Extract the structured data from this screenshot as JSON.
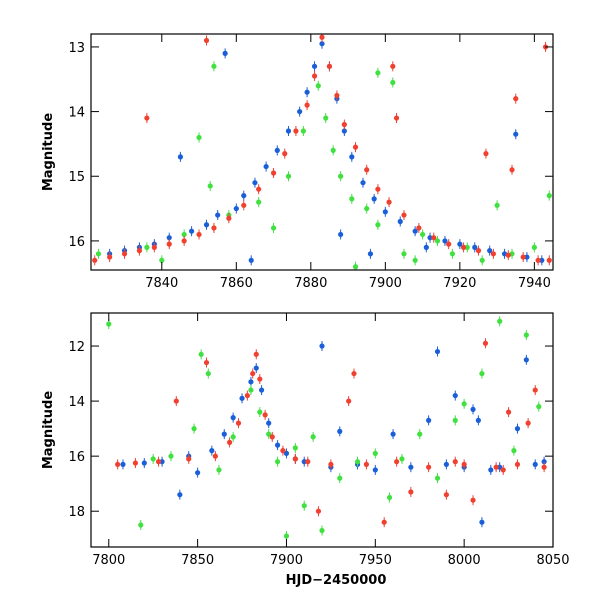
{
  "chart_data": [
    {
      "type": "scatter",
      "title": "",
      "xlabel": "",
      "ylabel": "Magnitude",
      "xlim": [
        7821,
        7945
      ],
      "ylim": [
        16.45,
        12.8
      ],
      "y_inverted": true,
      "xticks": [
        7840,
        7860,
        7880,
        7900,
        7920,
        7940
      ],
      "yticks": [
        13,
        14,
        15,
        16
      ],
      "grid": false,
      "legend": "none",
      "series": [
        {
          "color": "#1a5fd8",
          "points": [
            [
              7826,
              16.2
            ],
            [
              7830,
              16.15
            ],
            [
              7834,
              16.1
            ],
            [
              7838,
              16.05
            ],
            [
              7842,
              15.95
            ],
            [
              7845,
              14.7
            ],
            [
              7848,
              15.85
            ],
            [
              7852,
              15.75
            ],
            [
              7855,
              15.6
            ],
            [
              7857,
              13.1
            ],
            [
              7860,
              15.5
            ],
            [
              7862,
              15.3
            ],
            [
              7865,
              15.1
            ],
            [
              7868,
              14.85
            ],
            [
              7871,
              14.6
            ],
            [
              7874,
              14.3
            ],
            [
              7877,
              14.0
            ],
            [
              7879,
              13.7
            ],
            [
              7881,
              13.3
            ],
            [
              7883,
              12.95
            ],
            [
              7885,
              13.3
            ],
            [
              7887,
              13.8
            ],
            [
              7889,
              14.3
            ],
            [
              7891,
              14.7
            ],
            [
              7894,
              15.1
            ],
            [
              7897,
              15.35
            ],
            [
              7900,
              15.55
            ],
            [
              7904,
              15.7
            ],
            [
              7908,
              15.85
            ],
            [
              7912,
              15.95
            ],
            [
              7916,
              16.0
            ],
            [
              7920,
              16.05
            ],
            [
              7924,
              16.1
            ],
            [
              7928,
              16.15
            ],
            [
              7932,
              16.2
            ],
            [
              7935,
              14.35
            ],
            [
              7938,
              16.25
            ],
            [
              7942,
              16.3
            ],
            [
              7864,
              16.3
            ],
            [
              7888,
              15.9
            ],
            [
              7896,
              16.2
            ],
            [
              7911,
              16.1
            ]
          ]
        },
        {
          "color": "#41e041",
          "points": [
            [
              7823,
              16.2
            ],
            [
              7836,
              16.1
            ],
            [
              7840,
              16.3
            ],
            [
              7846,
              15.9
            ],
            [
              7850,
              14.4
            ],
            [
              7854,
              13.3
            ],
            [
              7853,
              15.15
            ],
            [
              7858,
              15.6
            ],
            [
              7866,
              15.4
            ],
            [
              7870,
              15.8
            ],
            [
              7874,
              15.0
            ],
            [
              7878,
              14.3
            ],
            [
              7882,
              13.6
            ],
            [
              7884,
              14.1
            ],
            [
              7886,
              14.6
            ],
            [
              7888,
              15.0
            ],
            [
              7891,
              15.35
            ],
            [
              7895,
              15.5
            ],
            [
              7898,
              15.75
            ],
            [
              7902,
              13.55
            ],
            [
              7898,
              13.4
            ],
            [
              7905,
              16.2
            ],
            [
              7910,
              15.9
            ],
            [
              7914,
              16.0
            ],
            [
              7918,
              16.2
            ],
            [
              7922,
              16.1
            ],
            [
              7926,
              16.3
            ],
            [
              7930,
              15.45
            ],
            [
              7934,
              16.2
            ],
            [
              7940,
              16.1
            ],
            [
              7944,
              15.3
            ],
            [
              7908,
              16.3
            ],
            [
              7892,
              16.4
            ]
          ]
        },
        {
          "color": "#f04030",
          "points": [
            [
              7822,
              16.3
            ],
            [
              7826,
              16.25
            ],
            [
              7830,
              16.2
            ],
            [
              7834,
              16.15
            ],
            [
              7836,
              14.1
            ],
            [
              7838,
              16.1
            ],
            [
              7842,
              16.05
            ],
            [
              7846,
              16.0
            ],
            [
              7850,
              15.9
            ],
            [
              7852,
              12.9
            ],
            [
              7854,
              15.8
            ],
            [
              7858,
              15.65
            ],
            [
              7862,
              15.45
            ],
            [
              7866,
              15.2
            ],
            [
              7870,
              14.95
            ],
            [
              7873,
              14.65
            ],
            [
              7876,
              14.3
            ],
            [
              7879,
              13.9
            ],
            [
              7881,
              13.45
            ],
            [
              7883,
              12.85
            ],
            [
              7885,
              13.3
            ],
            [
              7887,
              13.75
            ],
            [
              7889,
              14.2
            ],
            [
              7892,
              14.55
            ],
            [
              7895,
              14.9
            ],
            [
              7898,
              15.2
            ],
            [
              7901,
              15.4
            ],
            [
              7902,
              13.3
            ],
            [
              7903,
              14.1
            ],
            [
              7905,
              15.6
            ],
            [
              7909,
              15.8
            ],
            [
              7913,
              15.95
            ],
            [
              7917,
              16.05
            ],
            [
              7921,
              16.1
            ],
            [
              7925,
              16.15
            ],
            [
              7927,
              14.65
            ],
            [
              7929,
              16.2
            ],
            [
              7933,
              16.22
            ],
            [
              7934,
              14.9
            ],
            [
              7935,
              13.8
            ],
            [
              7937,
              16.25
            ],
            [
              7941,
              16.3
            ],
            [
              7943,
              13.0
            ],
            [
              7944,
              16.3
            ]
          ]
        }
      ]
    },
    {
      "type": "scatter",
      "title": "",
      "xlabel": "HJD−2450000",
      "ylabel": "Magnitude",
      "xlim": [
        7790,
        8050
      ],
      "ylim": [
        19.3,
        10.8
      ],
      "y_inverted": true,
      "xticks": [
        7800,
        7850,
        7900,
        7950,
        8000,
        8050
      ],
      "yticks": [
        12,
        14,
        16,
        18
      ],
      "grid": false,
      "legend": "none",
      "series": [
        {
          "color": "#1a5fd8",
          "points": [
            [
              7808,
              16.3
            ],
            [
              7820,
              16.25
            ],
            [
              7830,
              16.2
            ],
            [
              7840,
              17.4
            ],
            [
              7845,
              16.0
            ],
            [
              7850,
              16.6
            ],
            [
              7858,
              15.8
            ],
            [
              7865,
              15.2
            ],
            [
              7870,
              14.6
            ],
            [
              7875,
              13.9
            ],
            [
              7880,
              13.3
            ],
            [
              7883,
              12.8
            ],
            [
              7886,
              13.6
            ],
            [
              7890,
              14.8
            ],
            [
              7895,
              15.6
            ],
            [
              7900,
              15.9
            ],
            [
              7905,
              16.1
            ],
            [
              7910,
              16.2
            ],
            [
              7920,
              12.0
            ],
            [
              7925,
              16.4
            ],
            [
              7930,
              15.1
            ],
            [
              7940,
              16.3
            ],
            [
              7950,
              16.5
            ],
            [
              7960,
              15.2
            ],
            [
              7970,
              16.4
            ],
            [
              7980,
              14.7
            ],
            [
              7985,
              12.2
            ],
            [
              7990,
              16.3
            ],
            [
              7995,
              13.8
            ],
            [
              8000,
              16.4
            ],
            [
              8005,
              14.3
            ],
            [
              8008,
              14.7
            ],
            [
              8010,
              18.4
            ],
            [
              8015,
              16.5
            ],
            [
              8020,
              16.4
            ],
            [
              8030,
              15.0
            ],
            [
              8035,
              12.5
            ],
            [
              8040,
              16.3
            ],
            [
              8045,
              16.2
            ]
          ]
        },
        {
          "color": "#41e041",
          "points": [
            [
              7800,
              11.2
            ],
            [
              7818,
              18.5
            ],
            [
              7825,
              16.1
            ],
            [
              7835,
              16.0
            ],
            [
              7848,
              15.0
            ],
            [
              7852,
              12.3
            ],
            [
              7856,
              13.0
            ],
            [
              7862,
              16.5
            ],
            [
              7870,
              15.3
            ],
            [
              7880,
              13.6
            ],
            [
              7885,
              14.4
            ],
            [
              7890,
              15.2
            ],
            [
              7895,
              16.2
            ],
            [
              7900,
              18.9
            ],
            [
              7905,
              15.7
            ],
            [
              7910,
              17.8
            ],
            [
              7915,
              15.3
            ],
            [
              7920,
              18.7
            ],
            [
              7930,
              16.8
            ],
            [
              7940,
              16.2
            ],
            [
              7950,
              15.9
            ],
            [
              7958,
              17.5
            ],
            [
              7965,
              16.1
            ],
            [
              7975,
              15.2
            ],
            [
              7985,
              16.8
            ],
            [
              7995,
              14.7
            ],
            [
              8000,
              14.1
            ],
            [
              8010,
              13.0
            ],
            [
              8020,
              11.1
            ],
            [
              8028,
              15.8
            ],
            [
              8035,
              11.6
            ],
            [
              8042,
              14.2
            ]
          ]
        },
        {
          "color": "#f04030",
          "points": [
            [
              7805,
              16.3
            ],
            [
              7815,
              16.25
            ],
            [
              7828,
              16.2
            ],
            [
              7838,
              14.0
            ],
            [
              7845,
              16.1
            ],
            [
              7855,
              12.6
            ],
            [
              7860,
              16.0
            ],
            [
              7868,
              15.5
            ],
            [
              7873,
              14.8
            ],
            [
              7878,
              13.8
            ],
            [
              7881,
              13.0
            ],
            [
              7883,
              12.3
            ],
            [
              7885,
              13.2
            ],
            [
              7888,
              14.5
            ],
            [
              7892,
              15.3
            ],
            [
              7898,
              15.8
            ],
            [
              7905,
              16.1
            ],
            [
              7912,
              16.2
            ],
            [
              7918,
              18.0
            ],
            [
              7925,
              16.3
            ],
            [
              7935,
              14.0
            ],
            [
              7938,
              13.0
            ],
            [
              7945,
              16.3
            ],
            [
              7955,
              18.4
            ],
            [
              7962,
              16.2
            ],
            [
              7970,
              17.3
            ],
            [
              7980,
              16.4
            ],
            [
              7990,
              17.4
            ],
            [
              7995,
              16.2
            ],
            [
              8000,
              16.3
            ],
            [
              8005,
              17.6
            ],
            [
              8012,
              11.9
            ],
            [
              8018,
              16.4
            ],
            [
              8022,
              16.5
            ],
            [
              8025,
              14.4
            ],
            [
              8030,
              16.3
            ],
            [
              8036,
              14.8
            ],
            [
              8040,
              13.6
            ],
            [
              8045,
              16.4
            ]
          ]
        }
      ]
    }
  ]
}
